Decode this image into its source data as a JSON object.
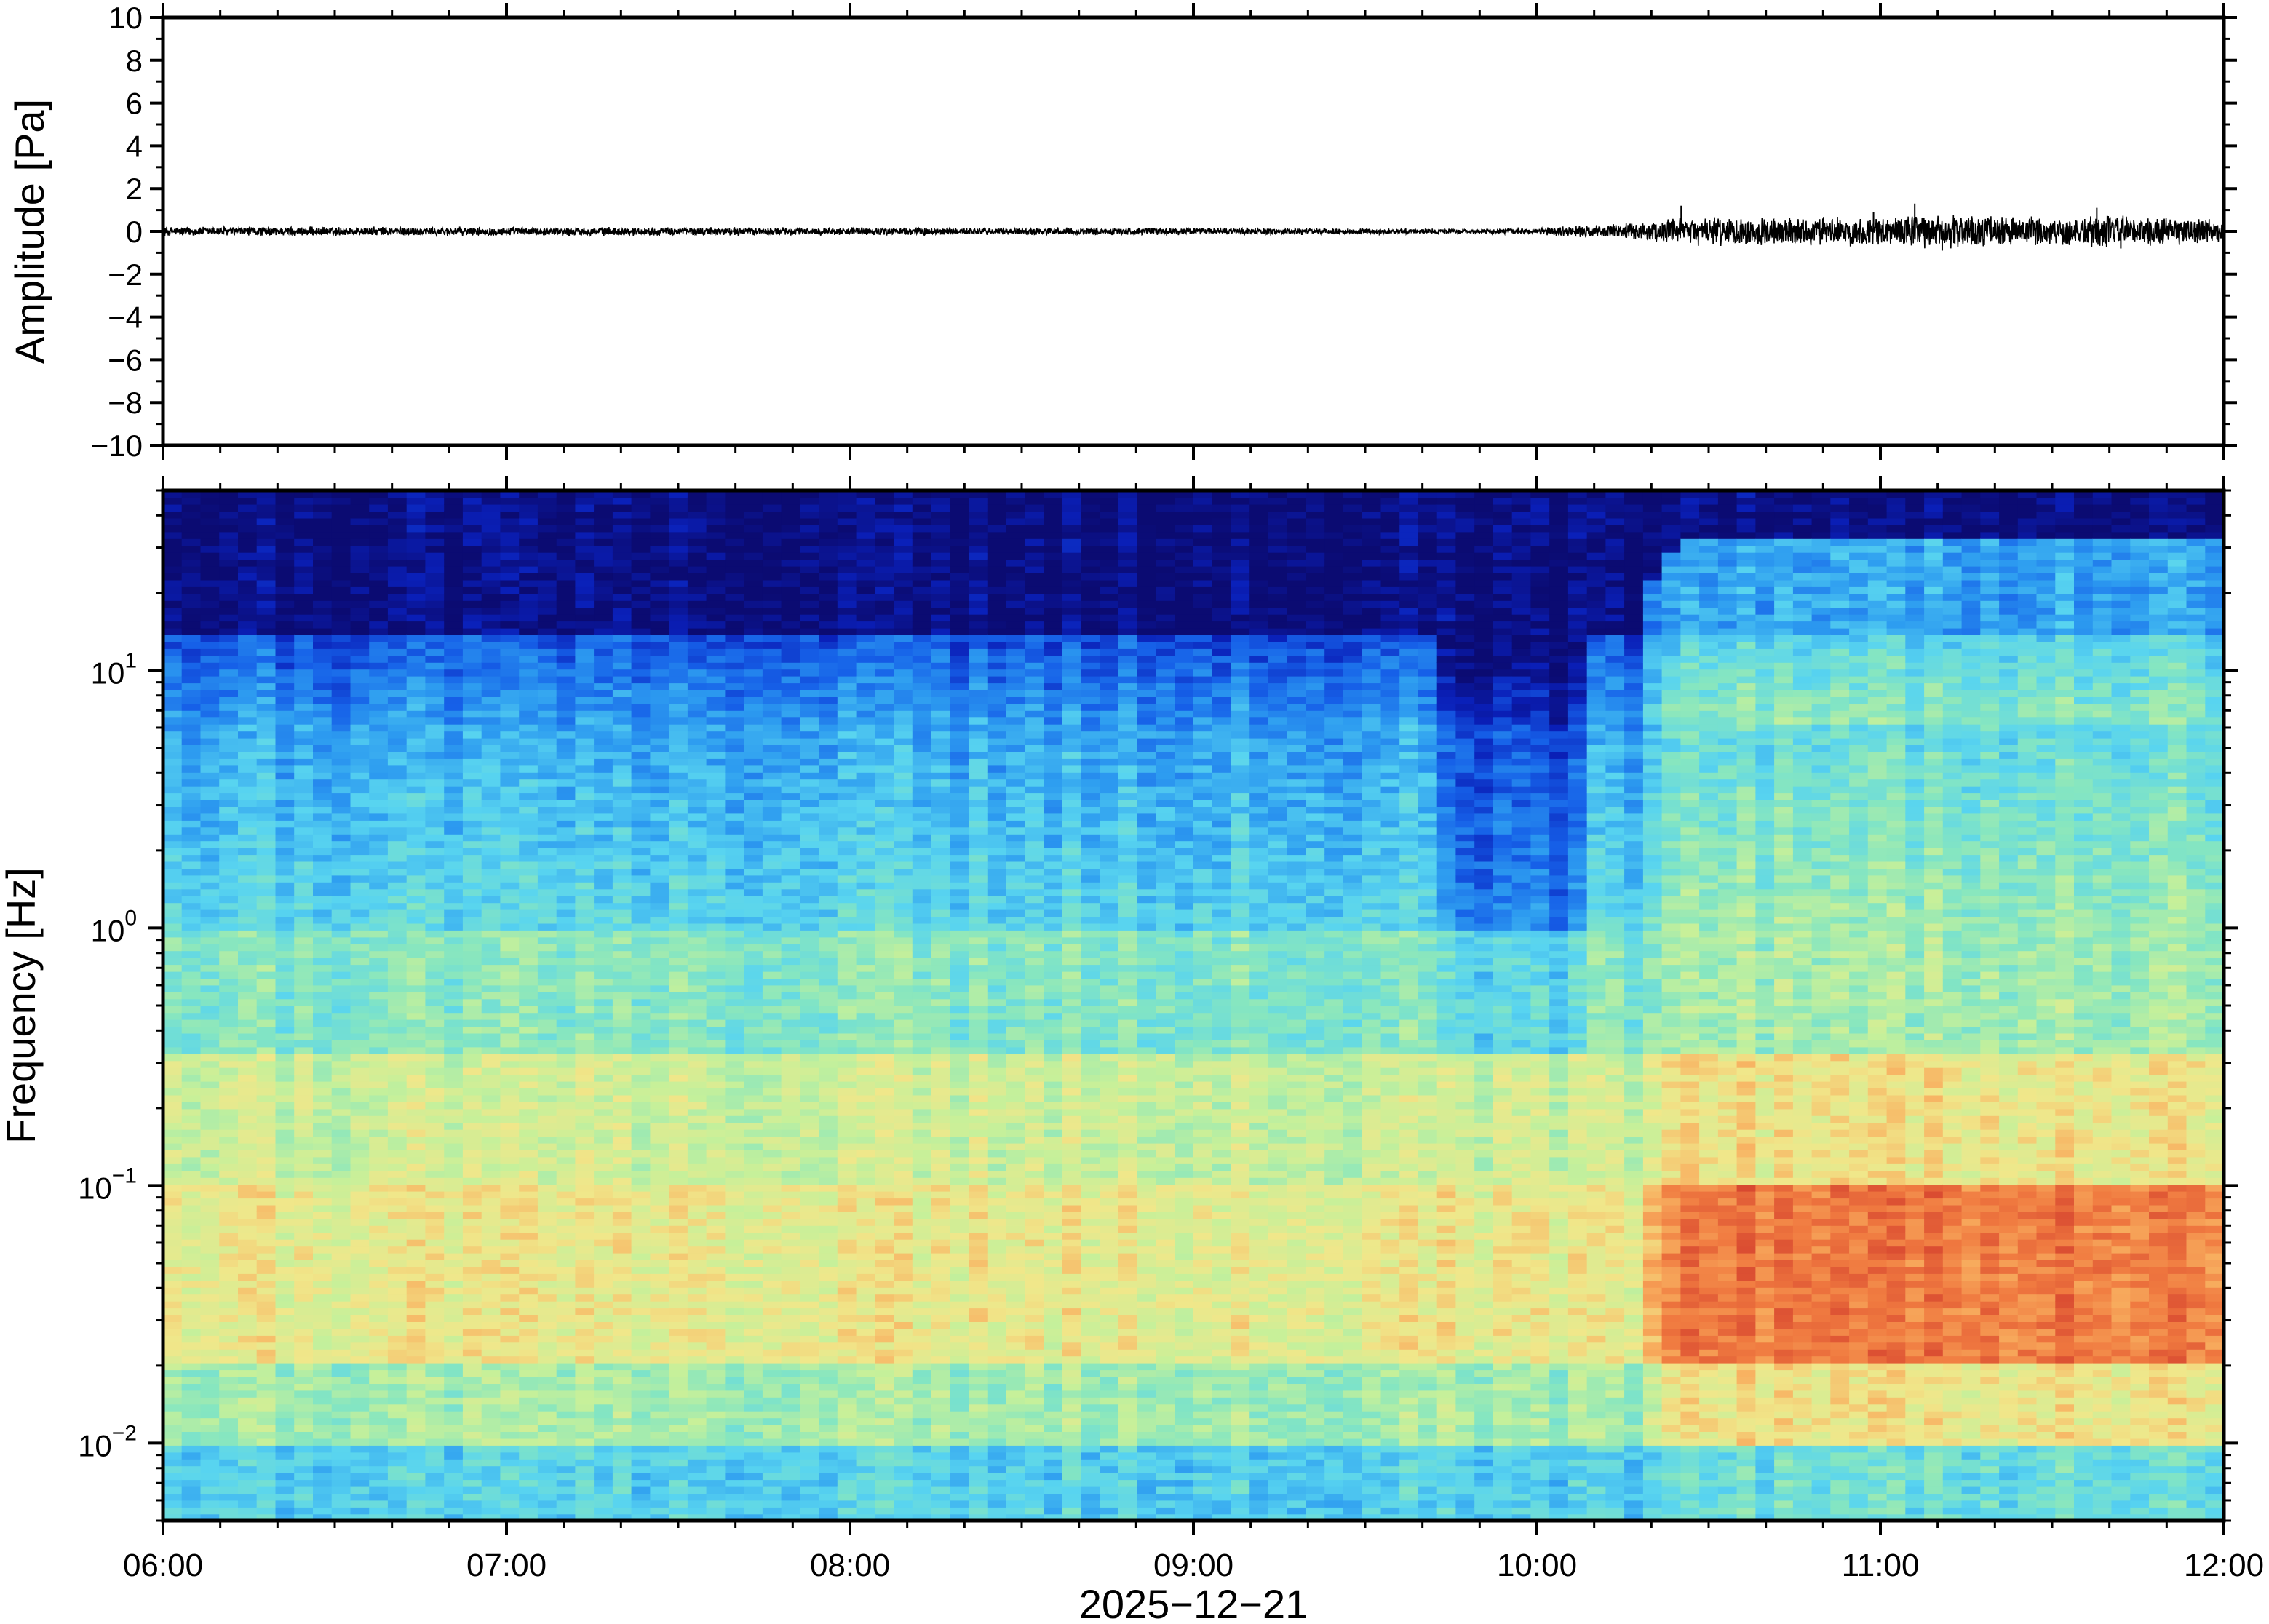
{
  "chart_data": [
    {
      "type": "line",
      "panel": "waveform",
      "ylabel": "Amplitude [Pa]",
      "ylim": [
        -10,
        10
      ],
      "yticks": [
        10,
        8,
        6,
        4,
        2,
        0,
        -2,
        -4,
        -6,
        -8,
        -10
      ],
      "ytick_labels": [
        "10",
        "8",
        "6",
        "4",
        "2",
        "0",
        "−2",
        "−4",
        "−6",
        "−8",
        "−10"
      ],
      "x_range_hours": [
        6,
        12
      ],
      "grid": false,
      "line_color": "#000000",
      "envelope_pa": {
        "hours": [
          6.0,
          7.0,
          8.0,
          9.0,
          9.5,
          9.85,
          10.0,
          10.15,
          10.3,
          10.45,
          10.6,
          10.8,
          11.0,
          11.1,
          11.3,
          11.5,
          11.65,
          11.8,
          12.0
        ],
        "half_width": [
          0.25,
          0.22,
          0.2,
          0.18,
          0.15,
          0.12,
          0.18,
          0.3,
          0.45,
          0.7,
          0.75,
          0.7,
          0.75,
          0.9,
          0.8,
          0.75,
          0.85,
          0.7,
          0.65
        ]
      },
      "spikes_pa": [
        [
          10.42,
          1.2
        ],
        [
          10.98,
          0.9
        ],
        [
          11.1,
          1.3
        ],
        [
          11.18,
          -0.9
        ],
        [
          11.63,
          1.1
        ],
        [
          11.7,
          -0.8
        ]
      ]
    },
    {
      "type": "heatmap",
      "panel": "spectrogram",
      "ylabel": "Frequency [Hz]",
      "yscale": "log",
      "ylim": [
        0.005,
        50
      ],
      "yticks": [
        0.01,
        0.1,
        1,
        10
      ],
      "ytick_base": "10",
      "ytick_exponents": [
        "−2",
        "−1",
        "0",
        "1"
      ],
      "xlabel": "2025−12−21",
      "xticks": [
        "06:00",
        "07:00",
        "08:00",
        "09:00",
        "10:00",
        "11:00",
        "12:00"
      ],
      "x_range_hours": [
        6,
        12
      ],
      "colormap": "jet",
      "color_stops": [
        "#0b0b72",
        "#0a1fb8",
        "#1660e8",
        "#2d9cf0",
        "#58d4f0",
        "#86e6c0",
        "#c6f09a",
        "#f0e78a",
        "#f8b060",
        "#f07a40",
        "#d84830"
      ],
      "quiet_window_hours": [
        9.7,
        10.15
      ],
      "active_period_start_hours": 10.3
    }
  ]
}
